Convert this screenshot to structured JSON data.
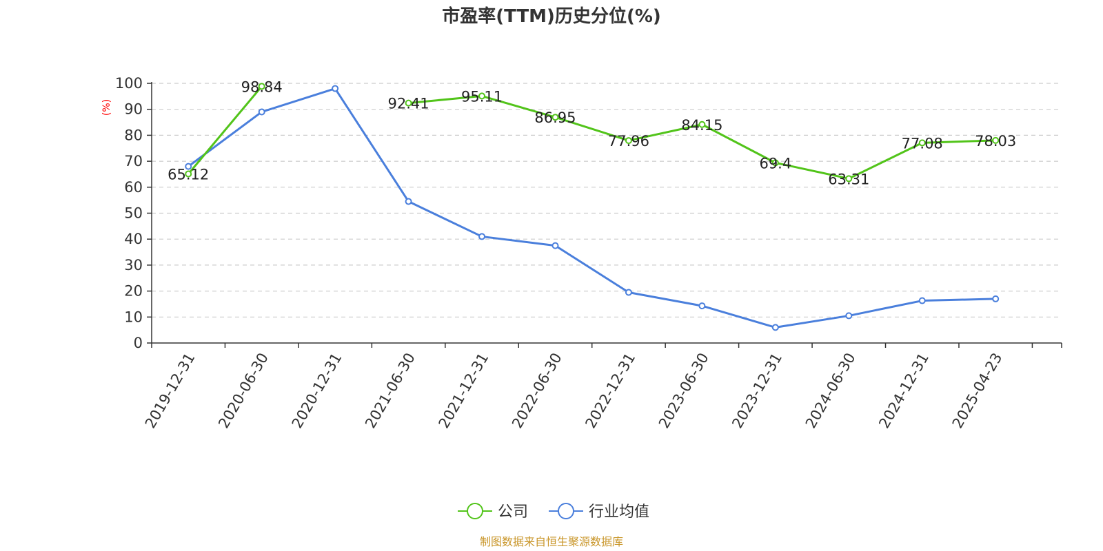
{
  "chart_data": {
    "type": "line",
    "title": "市盈率(TTM)历史分位(%)",
    "ylabel": "(%)",
    "ylim": [
      0,
      100
    ],
    "yticks": [
      0,
      10,
      20,
      30,
      40,
      50,
      60,
      70,
      80,
      90,
      100
    ],
    "categories": [
      "2019-12-31",
      "2020-06-30",
      "2020-12-31",
      "2021-06-30",
      "2021-12-31",
      "2022-06-30",
      "2022-12-31",
      "2023-06-30",
      "2023-12-31",
      "2024-06-30",
      "2024-12-31",
      "2025-04-23"
    ],
    "grid": true,
    "legend_position": "bottom",
    "series": [
      {
        "name": "公司",
        "color": "#52c41a",
        "values": [
          65.12,
          98.84,
          null,
          92.41,
          95.11,
          86.95,
          77.96,
          84.15,
          69.4,
          63.31,
          77.08,
          78.03
        ],
        "labels": [
          "65.12",
          "98.84",
          "",
          "92.41",
          "95.11",
          "86.95",
          "77.96",
          "84.15",
          "69.4",
          "63.31",
          "77.08",
          "78.03"
        ]
      },
      {
        "name": "行业均值",
        "color": "#4a7fdc",
        "values": [
          68.0,
          89.0,
          98.0,
          54.5,
          41.0,
          37.5,
          19.5,
          14.3,
          6.0,
          10.5,
          16.3,
          17.0
        ]
      }
    ],
    "source": "制图数据来自恒生聚源数据库"
  }
}
